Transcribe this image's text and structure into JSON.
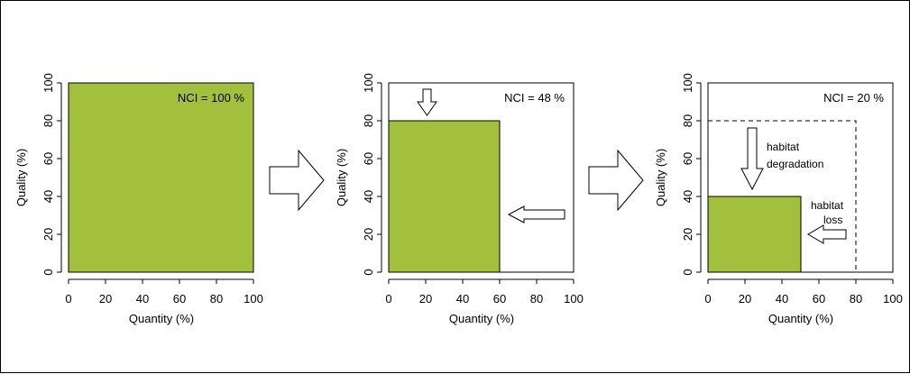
{
  "colors": {
    "fill": "#a3c03c",
    "stroke": "#000000",
    "background": "#ffffff"
  },
  "panels": [
    {
      "nci_label": "NCI = 100 %",
      "xlabel": "Quantity (%)",
      "ylabel": "Quality (%)",
      "x_ticks": [
        "0",
        "20",
        "40",
        "60",
        "80",
        "100"
      ],
      "y_ticks": [
        "0",
        "20",
        "40",
        "60",
        "80",
        "100"
      ],
      "habitat": {
        "quantity": 100,
        "quality": 100
      }
    },
    {
      "nci_label": "NCI = 48 %",
      "xlabel": "Quantity (%)",
      "ylabel": "Quality (%)",
      "x_ticks": [
        "0",
        "20",
        "40",
        "60",
        "80",
        "100"
      ],
      "y_ticks": [
        "0",
        "20",
        "40",
        "60",
        "80",
        "100"
      ],
      "habitat": {
        "quantity": 60,
        "quality": 80
      }
    },
    {
      "nci_label": "NCI = 20 %",
      "xlabel": "Quantity (%)",
      "ylabel": "Quality (%)",
      "x_ticks": [
        "0",
        "20",
        "40",
        "60",
        "80",
        "100"
      ],
      "y_ticks": [
        "0",
        "20",
        "40",
        "60",
        "80",
        "100"
      ],
      "habitat": {
        "quantity": 50,
        "quality": 40
      },
      "previous": {
        "quantity": 80,
        "quality": 80
      },
      "annotations": {
        "degradation_line1": "habitat",
        "degradation_line2": "degradation",
        "loss_line1": "habitat",
        "loss_line2": "loss"
      }
    }
  ]
}
